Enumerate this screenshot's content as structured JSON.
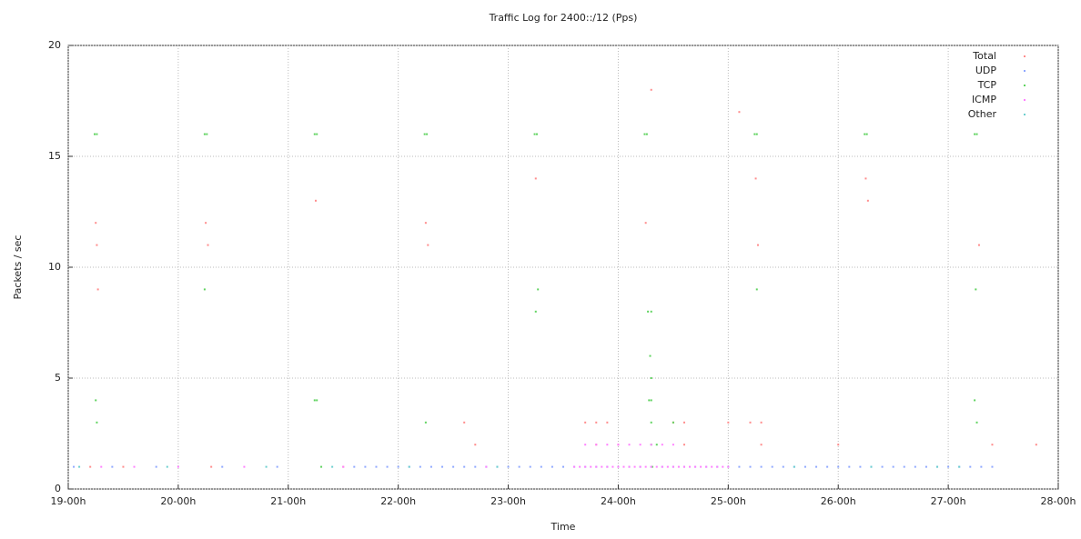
{
  "chart_data": {
    "type": "scatter",
    "title": "Traffic Log for 2400::/12 (Pps)",
    "x_label": "Time",
    "y_label": "Packets / sec",
    "xlim": [
      19,
      28
    ],
    "xticks": [
      {
        "value": 19,
        "label": "19-00h"
      },
      {
        "value": 20,
        "label": "20-00h"
      },
      {
        "value": 21,
        "label": "21-00h"
      },
      {
        "value": 22,
        "label": "22-00h"
      },
      {
        "value": 23,
        "label": "23-00h"
      },
      {
        "value": 24,
        "label": "24-00h"
      },
      {
        "value": 25,
        "label": "25-00h"
      },
      {
        "value": 26,
        "label": "26-00h"
      },
      {
        "value": 27,
        "label": "27-00h"
      },
      {
        "value": 28,
        "label": "28-00h"
      }
    ],
    "ylim": [
      0,
      20
    ],
    "yticks": [
      0,
      5,
      10,
      15,
      20
    ],
    "grid": true,
    "legend": "top-right",
    "series": [
      {
        "name": "Total",
        "color": "#ff8c8c",
        "x": [
          19.25,
          19.26,
          19.27,
          20.25,
          20.27,
          21.25,
          22.25,
          22.27,
          23.25,
          24.25,
          24.3,
          25.1,
          25.25,
          25.27,
          26.25,
          26.27,
          27.28,
          22.6,
          23.7,
          23.8,
          23.9,
          24.5,
          24.6,
          25.0,
          25.2,
          25.3,
          22.7,
          23.8,
          24.0,
          24.6,
          25.3,
          26.0,
          27.4,
          27.8,
          19.2,
          19.5,
          20.3,
          21.5
        ],
        "values": [
          12,
          11,
          9,
          12,
          11,
          13,
          12,
          11,
          14,
          12,
          18,
          17,
          14,
          11,
          14,
          13,
          11,
          3,
          3,
          3,
          3,
          3,
          3,
          3,
          3,
          3,
          2,
          2,
          2,
          2,
          2,
          2,
          2,
          2,
          1,
          1,
          1,
          1
        ]
      },
      {
        "name": "UDP",
        "color": "#8fa8ff",
        "x": [
          19.05,
          19.4,
          19.8,
          20.4,
          20.9,
          21.6,
          21.7,
          21.8,
          21.9,
          22.0,
          22.1,
          22.2,
          22.3,
          22.4,
          22.5,
          22.6,
          22.7,
          22.8,
          22.9,
          23.0,
          23.1,
          23.2,
          23.3,
          23.4,
          23.5,
          23.6,
          23.7,
          23.8,
          23.9,
          24.0,
          24.1,
          24.2,
          24.3,
          24.4,
          24.5,
          24.6,
          24.7,
          24.8,
          24.9,
          25.0,
          25.1,
          25.2,
          25.3,
          25.4,
          25.5,
          25.6,
          25.7,
          25.8,
          25.9,
          26.0,
          26.1,
          26.2,
          26.3,
          26.4,
          26.5,
          26.6,
          26.7,
          26.8,
          26.9,
          27.0,
          27.1,
          27.2,
          27.3,
          27.4
        ],
        "values": [
          1,
          1,
          1,
          1,
          1,
          1,
          1,
          1,
          1,
          1,
          1,
          1,
          1,
          1,
          1,
          1,
          1,
          1,
          1,
          1,
          1,
          1,
          1,
          1,
          1,
          1,
          1,
          1,
          1,
          1,
          1,
          1,
          1,
          1,
          1,
          1,
          1,
          1,
          1,
          1,
          1,
          1,
          1,
          1,
          1,
          1,
          1,
          1,
          1,
          1,
          1,
          1,
          1,
          1,
          1,
          1,
          1,
          1,
          1,
          1,
          1,
          1,
          1,
          1
        ]
      },
      {
        "name": "TCP",
        "color": "#5fd35f",
        "x": [
          19.24,
          19.26,
          20.24,
          20.26,
          21.24,
          21.26,
          22.24,
          22.26,
          23.24,
          23.26,
          24.24,
          24.26,
          25.24,
          25.26,
          26.24,
          26.26,
          27.24,
          27.26,
          20.24,
          23.27,
          25.26,
          27.25,
          23.25,
          24.27,
          24.3,
          24.29,
          24.3,
          19.25,
          21.24,
          21.26,
          24.28,
          24.3,
          27.24,
          19.26,
          22.25,
          24.3,
          24.5,
          27.26,
          24.3,
          24.35,
          21.3,
          24.31
        ],
        "values": [
          16,
          16,
          16,
          16,
          16,
          16,
          16,
          16,
          16,
          16,
          16,
          16,
          16,
          16,
          16,
          16,
          16,
          16,
          9,
          9,
          9,
          9,
          8,
          8,
          8,
          6,
          5,
          4,
          4,
          4,
          4,
          4,
          4,
          3,
          3,
          3,
          3,
          3,
          2,
          2,
          1,
          1
        ]
      },
      {
        "name": "ICMP",
        "color": "#ff80ff",
        "x": [
          19.3,
          19.6,
          20.0,
          20.6,
          21.5,
          22.8,
          23.6,
          23.65,
          23.7,
          23.75,
          23.8,
          23.85,
          23.9,
          23.95,
          24.0,
          24.05,
          24.1,
          24.15,
          24.2,
          24.25,
          24.3,
          24.35,
          24.4,
          24.45,
          24.5,
          24.55,
          24.6,
          24.65,
          24.7,
          24.75,
          24.8,
          24.85,
          24.9,
          24.95,
          25.0,
          23.7,
          23.8,
          23.9,
          24.0,
          24.1,
          24.2,
          24.3,
          24.4,
          24.5
        ],
        "values": [
          1,
          1,
          1,
          1,
          1,
          1,
          1,
          1,
          1,
          1,
          1,
          1,
          1,
          1,
          1,
          1,
          1,
          1,
          1,
          1,
          1,
          1,
          1,
          1,
          1,
          1,
          1,
          1,
          1,
          1,
          1,
          1,
          1,
          1,
          1,
          2,
          2,
          2,
          2,
          2,
          2,
          2,
          2,
          2
        ]
      },
      {
        "name": "Other",
        "color": "#6ccfcf",
        "x": [
          19.1,
          19.9,
          20.8,
          21.4,
          22.1,
          22.9,
          25.6,
          26.3,
          26.9,
          27.1
        ],
        "values": [
          1,
          1,
          1,
          1,
          1,
          1,
          1,
          1,
          1,
          1
        ]
      }
    ]
  }
}
